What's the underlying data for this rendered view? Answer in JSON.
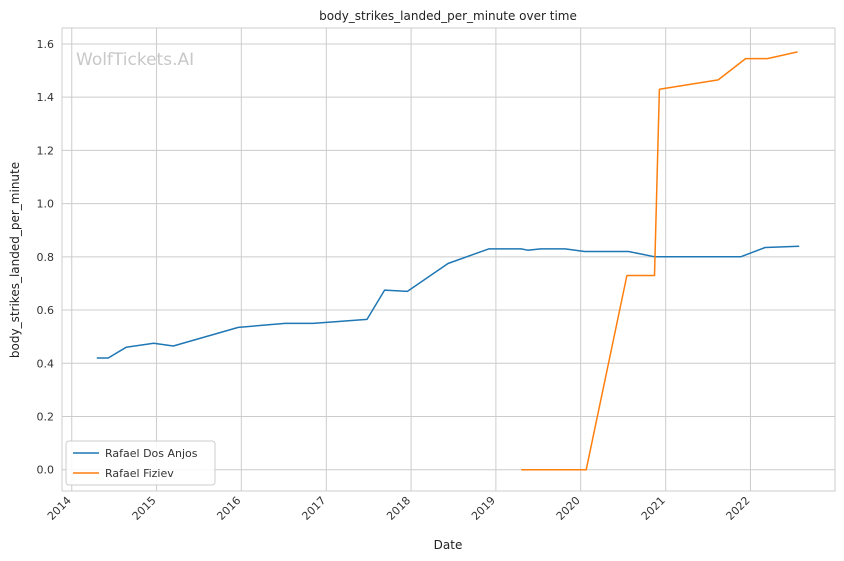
{
  "chart_data": {
    "type": "line",
    "title": "body_strikes_landed_per_minute over time",
    "xlabel": "Date",
    "ylabel": "body_strikes_landed_per_minute",
    "watermark": "WolfTickets.AI",
    "xlim": [
      "2013-11-20",
      "2022-12-31"
    ],
    "ylim": [
      -0.08,
      1.66
    ],
    "x_ticks": [
      "2014",
      "2015",
      "2016",
      "2017",
      "2018",
      "2019",
      "2020",
      "2021",
      "2022"
    ],
    "y_ticks": [
      "0.0",
      "0.2",
      "0.4",
      "0.6",
      "0.8",
      "1.0",
      "1.2",
      "1.4",
      "1.6"
    ],
    "grid": true,
    "legend_position": "bottom-left",
    "series": [
      {
        "name": "Rafael Dos Anjos",
        "color": "#1f77b4",
        "points": [
          [
            "2014-04-19",
            0.42
          ],
          [
            "2014-06-07",
            0.42
          ],
          [
            "2014-08-23",
            0.46
          ],
          [
            "2014-12-20",
            0.475
          ],
          [
            "2015-03-14",
            0.465
          ],
          [
            "2015-12-19",
            0.535
          ],
          [
            "2016-07-07",
            0.55
          ],
          [
            "2016-11-05",
            0.55
          ],
          [
            "2017-06-25",
            0.565
          ],
          [
            "2017-09-09",
            0.675
          ],
          [
            "2017-12-16",
            0.67
          ],
          [
            "2018-06-09",
            0.775
          ],
          [
            "2018-12-01",
            0.83
          ],
          [
            "2019-04-20",
            0.83
          ],
          [
            "2019-05-18",
            0.825
          ],
          [
            "2019-07-13",
            0.83
          ],
          [
            "2019-10-26",
            0.83
          ],
          [
            "2020-01-18",
            0.82
          ],
          [
            "2020-07-25",
            0.82
          ],
          [
            "2020-11-15",
            0.8
          ],
          [
            "2021-11-20",
            0.8
          ],
          [
            "2022-03-05",
            0.835
          ],
          [
            "2022-07-30",
            0.84
          ]
        ]
      },
      {
        "name": "Rafael Fiziev",
        "color": "#ff7f0e",
        "points": [
          [
            "2019-04-20",
            0.0
          ],
          [
            "2020-01-25",
            0.0
          ],
          [
            "2020-07-18",
            0.73
          ],
          [
            "2020-11-14",
            0.73
          ],
          [
            "2020-12-05",
            1.43
          ],
          [
            "2021-08-15",
            1.465
          ],
          [
            "2021-12-11",
            1.545
          ],
          [
            "2022-03-15",
            1.545
          ],
          [
            "2022-07-23",
            1.57
          ]
        ]
      }
    ]
  }
}
